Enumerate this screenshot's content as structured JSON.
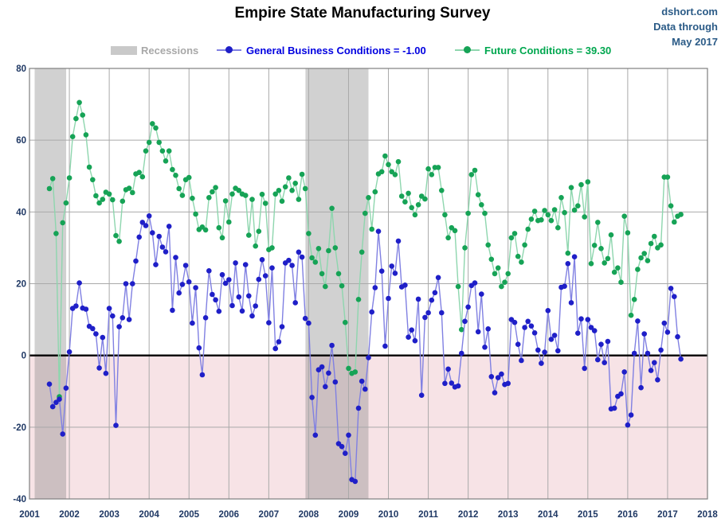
{
  "header": {
    "title": "Empire State Manufacturing Survey",
    "watermark": {
      "line1": "dshort.com",
      "line2": "Data through",
      "line3": "May 2017"
    }
  },
  "legend": {
    "recessions_label": "Recessions",
    "gbc_label": "General Business Conditions = -1.00",
    "future_label": "Future Conditions = 39.30",
    "recessions_swatch_color": "#c9c9c9",
    "recessions_text_color": "#a8a8a8",
    "gbc_text_color": "#0000e0",
    "future_text_color": "#00a74f"
  },
  "chart_data": {
    "type": "line",
    "title": "Empire State Manufacturing Survey",
    "frequency": "monthly",
    "x_start": "2001-07",
    "x_end": "2017-05",
    "xlim": [
      2001,
      2018
    ],
    "ylim": [
      -40,
      80
    ],
    "y_ticks": [
      80,
      60,
      40,
      20,
      0,
      -20,
      -40
    ],
    "x_ticks": [
      2001,
      2002,
      2003,
      2004,
      2005,
      2006,
      2007,
      2008,
      2009,
      2010,
      2011,
      2012,
      2013,
      2014,
      2015,
      2016,
      2017,
      2018
    ],
    "grid": true,
    "zero_line": true,
    "legend_position": "top",
    "negative_region_color": "#f7e3e6",
    "recession_band_color": "rgba(128,128,128,0.36)",
    "grid_color": "#a9a9a9",
    "border_color": "#7f7f7f",
    "axis_label_color": "#1f3864",
    "recessions": [
      {
        "start": 2001.13,
        "end": 2001.92
      },
      {
        "start": 2007.92,
        "end": 2009.5
      }
    ],
    "series": [
      {
        "name": "General Business Conditions",
        "current_value": -1.0,
        "dot_color": "#1f1fc8",
        "line_color": "#8080e2",
        "values": [
          -8,
          -14.3,
          -13.1,
          -12.2,
          -21.9,
          -9.1,
          1,
          13.1,
          13.8,
          20.2,
          13.2,
          12.9,
          8.1,
          7.5,
          6,
          -3.5,
          5,
          -5,
          13.1,
          11,
          -19.5,
          8,
          10.5,
          20,
          10,
          20,
          26.3,
          33,
          37.1,
          36.2,
          38.9,
          34.2,
          25.3,
          33.2,
          30.2,
          28.9,
          36,
          12.6,
          27.3,
          17.4,
          19.8,
          25.1,
          20.5,
          9,
          18.9,
          2.1,
          -5.4,
          10.5,
          23.6,
          17,
          15.5,
          12.3,
          22.5,
          20.1,
          21.1,
          13.9,
          25.8,
          16.3,
          12.4,
          25.3,
          16.6,
          11,
          13.8,
          21.2,
          26.7,
          22.2,
          9.1,
          24.4,
          1.9,
          3.8,
          8,
          25.8,
          26.5,
          25.1,
          14.7,
          28.8,
          27.4,
          10.3,
          9,
          -11.7,
          -22.2,
          -4,
          -3.2,
          -8.7,
          -4.9,
          2.8,
          -7.4,
          -24.6,
          -25.4,
          -27.3,
          -22.2,
          -34.6,
          -35.1,
          -14.7,
          -7.2,
          -9.4,
          -0.6,
          12.1,
          18.9,
          34.6,
          23.5,
          2.6,
          15.9,
          24.9,
          22.9,
          31.9,
          19.1,
          19.6,
          5.1,
          7.1,
          4.1,
          15.7,
          -11.1,
          10.6,
          11.9,
          15.4,
          17.5,
          21.7,
          11.9,
          -7.8,
          -3.8,
          -7.7,
          -8.8,
          -8.5,
          0.6,
          9.5,
          13.5,
          19.5,
          20.2,
          6.6,
          17.1,
          2.3,
          7.4,
          -5.9,
          -10.4,
          -6.2,
          -5.2,
          -8.1,
          -7.8,
          10,
          9.2,
          3.1,
          -1.4,
          7.8,
          9.5,
          8.2,
          6.3,
          1.5,
          -2.2,
          0.9,
          12.5,
          4.5,
          5.6,
          1.3,
          19,
          19.3,
          25.6,
          14.7,
          27.5,
          6.2,
          10.2,
          -3.6,
          10,
          7.8,
          6.9,
          -1.2,
          3.1,
          -2,
          3.9,
          -14.9,
          -14.7,
          -11.4,
          -10.7,
          -4.6,
          -19.4,
          -16.6,
          0.6,
          9.6,
          -9,
          6,
          0.6,
          -4.2,
          -2,
          -6.8,
          1.5,
          9,
          6.5,
          18.7,
          16.4,
          5.2,
          -1
        ]
      },
      {
        "name": "Future Conditions",
        "current_value": 39.3,
        "dot_color": "#16a356",
        "line_color": "#8ed6ae",
        "values": [
          46.5,
          49.3,
          34,
          -11.5,
          37,
          42.5,
          49.5,
          61,
          66,
          70.5,
          67,
          61.5,
          52.5,
          49,
          44.5,
          42.5,
          43.5,
          45.5,
          45,
          43.4,
          33.4,
          31.8,
          43,
          46.2,
          46.6,
          45.4,
          50.6,
          51,
          49.8,
          57,
          59.4,
          64.6,
          63.4,
          59.4,
          57,
          54.2,
          57,
          51.8,
          50.2,
          46.5,
          44.6,
          49,
          49.6,
          43.8,
          39.4,
          35.1,
          35.8,
          35,
          44,
          45.6,
          46.8,
          35.6,
          32.8,
          43.1,
          37.2,
          45,
          46.6,
          46,
          45,
          44.6,
          33.5,
          43.5,
          30.5,
          34.6,
          44.9,
          42.4,
          29.5,
          30,
          45,
          46,
          43,
          47,
          49.5,
          46,
          48,
          43.5,
          50.5,
          46.5,
          34,
          27.2,
          26,
          29.8,
          22.8,
          19.2,
          29.2,
          41,
          30,
          22.8,
          19.4,
          9.2,
          -3.6,
          -5,
          -4.6,
          15.6,
          28.8,
          39.6,
          44,
          35.2,
          45.6,
          50.6,
          51.2,
          55.6,
          53.2,
          51.2,
          50.4,
          54,
          44.4,
          42.8,
          45.2,
          41.2,
          39.2,
          42,
          44.4,
          43.6,
          52,
          50.4,
          52.4,
          52.4,
          46,
          39.2,
          32.8,
          35.6,
          34.8,
          19.2,
          7.2,
          30,
          39.6,
          50.4,
          51.6,
          44.8,
          42,
          39.6,
          30.8,
          26.8,
          22.8,
          24.4,
          19.2,
          20.4,
          22.8,
          32.8,
          34,
          27.6,
          26,
          30.8,
          35.2,
          38,
          40.2,
          37.6,
          37.8,
          40.4,
          39.2,
          37.6,
          40.6,
          35.6,
          44,
          39.8,
          28.5,
          46.8,
          40.5,
          41.7,
          47.6,
          38.6,
          48.4,
          25.6,
          30.7,
          37.1,
          29.8,
          25.8,
          27,
          33.6,
          23.2,
          24.4,
          20.4,
          38.8,
          34.2,
          11.2,
          15.6,
          24,
          27.2,
          28.4,
          26.4,
          31.2,
          33.2,
          30,
          30.8,
          49.7,
          49.7,
          41.7,
          37.2,
          38.8,
          39.3
        ]
      }
    ]
  }
}
